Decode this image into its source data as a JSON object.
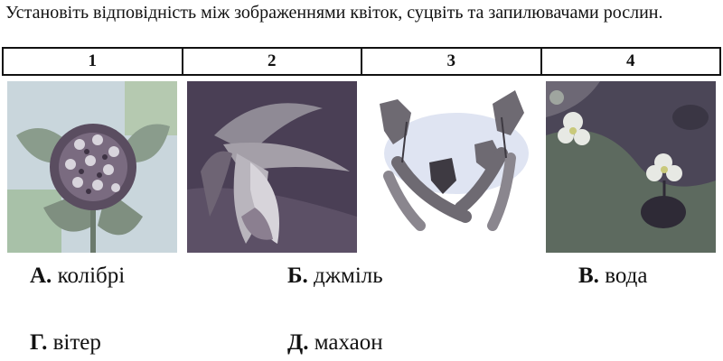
{
  "question": {
    "text": "Установіть відповідність між зображеннями квіток, суцвіть та запилювачами рослин."
  },
  "table": {
    "headers": [
      "1",
      "2",
      "3",
      "4"
    ],
    "images": [
      {
        "icon": "clover-flower-head-image"
      },
      {
        "icon": "drooping-orchid-flower-image"
      },
      {
        "icon": "birch-catkins-image"
      },
      {
        "icon": "water-plant-flowers-image"
      }
    ]
  },
  "answers": [
    {
      "letter": "А.",
      "text": "колібрі"
    },
    {
      "letter": "Б.",
      "text": "джміль"
    },
    {
      "letter": "В.",
      "text": "вода"
    },
    {
      "letter": "Г.",
      "text": "вітер"
    },
    {
      "letter": "Д.",
      "text": "махаон"
    }
  ]
}
